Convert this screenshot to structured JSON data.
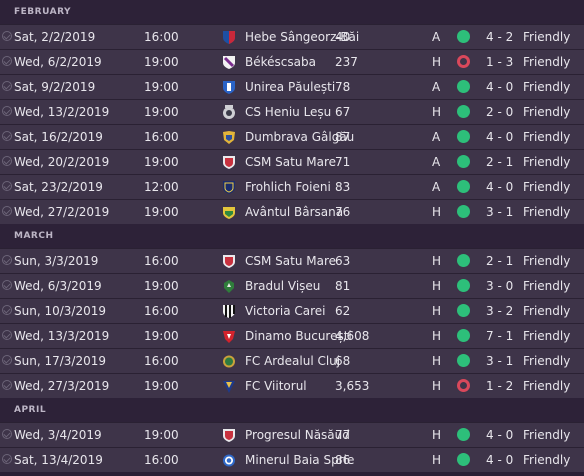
{
  "colors": {
    "win": "#2dbf7a",
    "loss": "#d9485b"
  },
  "sections": [
    {
      "month": "FEBRUARY",
      "rows": [
        {
          "date": "Sat, 2/2/2019",
          "time": "16:00",
          "team": "Hebe Sângeorz-Băi",
          "att": "40",
          "venue": "A",
          "result": "win",
          "score": "4 - 2",
          "comp": "Friendly",
          "badge": "shield-blue-red"
        },
        {
          "date": "Wed, 6/2/2019",
          "time": "19:00",
          "team": "Békéscsaba",
          "att": "237",
          "venue": "H",
          "result": "loss",
          "score": "1 - 3",
          "comp": "Friendly",
          "badge": "shield-purple-white"
        },
        {
          "date": "Sat, 9/2/2019",
          "time": "19:00",
          "team": "Unirea Păulești",
          "att": "78",
          "venue": "A",
          "result": "win",
          "score": "4 - 0",
          "comp": "Friendly",
          "badge": "shield-blue-white"
        },
        {
          "date": "Wed, 13/2/2019",
          "time": "19:00",
          "team": "CS Heniu Leșu",
          "att": "67",
          "venue": "H",
          "result": "win",
          "score": "2 - 0",
          "comp": "Friendly",
          "badge": "crest-grey"
        },
        {
          "date": "Sat, 16/2/2019",
          "time": "16:00",
          "team": "Dumbrava Gâlgău",
          "att": "87",
          "venue": "A",
          "result": "win",
          "score": "4 - 0",
          "comp": "Friendly",
          "badge": "crest-yellow-blue"
        },
        {
          "date": "Wed, 20/2/2019",
          "time": "19:00",
          "team": "CSM Satu Mare",
          "att": "71",
          "venue": "A",
          "result": "win",
          "score": "2 - 1",
          "comp": "Friendly",
          "badge": "shield-red-white"
        },
        {
          "date": "Sat, 23/2/2019",
          "time": "12:00",
          "team": "Frohlich Foieni",
          "att": "83",
          "venue": "A",
          "result": "win",
          "score": "4 - 0",
          "comp": "Friendly",
          "badge": "shield-navy"
        },
        {
          "date": "Wed, 27/2/2019",
          "time": "19:00",
          "team": "Avântul Bârsana",
          "att": "76",
          "venue": "H",
          "result": "win",
          "score": "3 - 1",
          "comp": "Friendly",
          "badge": "crest-yellow-green"
        }
      ]
    },
    {
      "month": "MARCH",
      "rows": [
        {
          "date": "Sun, 3/3/2019",
          "time": "16:00",
          "team": "CSM Satu Mare",
          "att": "63",
          "venue": "H",
          "result": "win",
          "score": "2 - 1",
          "comp": "Friendly",
          "badge": "shield-red-white"
        },
        {
          "date": "Wed, 6/3/2019",
          "time": "19:00",
          "team": "Bradul Vișeu",
          "att": "81",
          "venue": "H",
          "result": "win",
          "score": "3 - 0",
          "comp": "Friendly",
          "badge": "crest-green"
        },
        {
          "date": "Sun, 10/3/2019",
          "time": "16:00",
          "team": "Victoria Carei",
          "att": "62",
          "venue": "H",
          "result": "win",
          "score": "3 - 2",
          "comp": "Friendly",
          "badge": "shield-black-white"
        },
        {
          "date": "Wed, 13/3/2019",
          "time": "19:00",
          "team": "Dinamo București",
          "att": "4,608",
          "venue": "H",
          "result": "win",
          "score": "7 - 1",
          "comp": "Friendly",
          "badge": "crest-red"
        },
        {
          "date": "Sun, 17/3/2019",
          "time": "16:00",
          "team": "FC Ardealul Cluj",
          "att": "68",
          "venue": "H",
          "result": "win",
          "score": "3 - 1",
          "comp": "Friendly",
          "badge": "crest-green-gold"
        },
        {
          "date": "Wed, 27/3/2019",
          "time": "19:00",
          "team": "FC Viitorul",
          "att": "3,653",
          "venue": "H",
          "result": "loss",
          "score": "1 - 2",
          "comp": "Friendly",
          "badge": "crest-blue-gold"
        }
      ]
    },
    {
      "month": "APRIL",
      "rows": [
        {
          "date": "Wed, 3/4/2019",
          "time": "19:00",
          "team": "Progresul Năsăud",
          "att": "77",
          "venue": "H",
          "result": "win",
          "score": "4 - 0",
          "comp": "Friendly",
          "badge": "shield-red-white"
        },
        {
          "date": "Sat, 13/4/2019",
          "time": "16:00",
          "team": "Minerul Baia Sprie",
          "att": "86",
          "venue": "H",
          "result": "win",
          "score": "4 - 0",
          "comp": "Friendly",
          "badge": "roundel-blue"
        }
      ]
    }
  ]
}
